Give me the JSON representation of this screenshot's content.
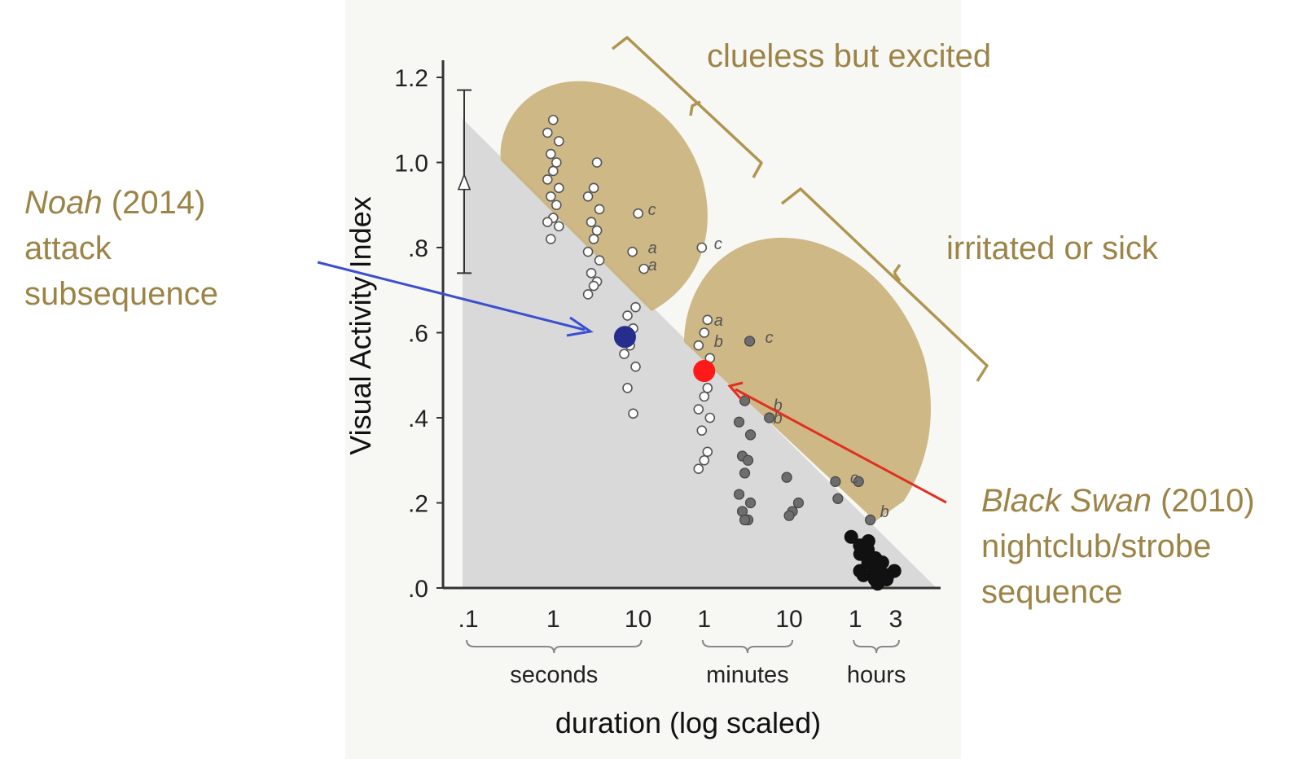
{
  "chart_data": {
    "type": "scatter",
    "ylabel": "Visual Activity Index",
    "xlabel": "duration (log scaled)",
    "x_scale": "log",
    "ylim": [
      0,
      1.2
    ],
    "y_ticks": [
      ".0",
      ".2",
      ".4",
      ".6",
      ".8",
      "1.0",
      "1.2"
    ],
    "x_ticks": [
      ".1",
      "1",
      "10",
      "1",
      "10",
      "1",
      "3"
    ],
    "x_units": [
      "seconds",
      "minutes",
      "hours"
    ],
    "grid": false,
    "reference_marker": {
      "value": 0.95,
      "range_low": 0.74,
      "range_high": 1.17
    },
    "region_labels": [
      "clueless but excited",
      "irritated or sick"
    ],
    "point_letters": [
      "c",
      "a",
      "a",
      "c",
      "a",
      "b",
      "c",
      "b",
      "b",
      "c",
      "b"
    ],
    "series": [
      {
        "style": "white",
        "points": [
          [
            1,
            1.1
          ],
          [
            1,
            1.07
          ],
          [
            1,
            1.05
          ],
          [
            1,
            1.02
          ],
          [
            1,
            1.0
          ],
          [
            1,
            0.98
          ],
          [
            1,
            0.96
          ],
          [
            1,
            0.94
          ],
          [
            1,
            0.92
          ],
          [
            1,
            0.9
          ],
          [
            1,
            0.87
          ],
          [
            1,
            0.86
          ],
          [
            1,
            0.85
          ],
          [
            1,
            0.82
          ],
          [
            3,
            1.0
          ],
          [
            3,
            0.94
          ],
          [
            3,
            0.92
          ],
          [
            3,
            0.89
          ],
          [
            3,
            0.86
          ],
          [
            3,
            0.84
          ],
          [
            3,
            0.82
          ],
          [
            3,
            0.79
          ],
          [
            3,
            0.77
          ],
          [
            3,
            0.74
          ],
          [
            3,
            0.72
          ],
          [
            3,
            0.71
          ],
          [
            3,
            0.69
          ],
          [
            8,
            0.66
          ],
          [
            8,
            0.64
          ],
          [
            8,
            0.61
          ],
          [
            8,
            0.57
          ],
          [
            8,
            0.55
          ],
          [
            8,
            0.52
          ],
          [
            8,
            0.47
          ],
          [
            8,
            0.41
          ],
          [
            10,
            0.88
          ],
          [
            10,
            0.79
          ],
          [
            10,
            0.75
          ],
          [
            60,
            0.8
          ],
          [
            60,
            0.63
          ],
          [
            60,
            0.6
          ],
          [
            60,
            0.57
          ],
          [
            60,
            0.54
          ],
          [
            60,
            0.51
          ],
          [
            60,
            0.47
          ],
          [
            60,
            0.45
          ],
          [
            60,
            0.42
          ],
          [
            60,
            0.4
          ],
          [
            60,
            0.37
          ],
          [
            60,
            0.32
          ],
          [
            60,
            0.3
          ],
          [
            60,
            0.28
          ]
        ]
      },
      {
        "style": "gray",
        "points": [
          [
            180,
            0.44
          ],
          [
            180,
            0.39
          ],
          [
            180,
            0.36
          ],
          [
            180,
            0.31
          ],
          [
            180,
            0.3
          ],
          [
            180,
            0.27
          ],
          [
            180,
            0.22
          ],
          [
            180,
            0.2
          ],
          [
            180,
            0.18
          ],
          [
            180,
            0.16
          ],
          [
            180,
            0.16
          ],
          [
            240,
            0.58
          ],
          [
            300,
            0.4
          ],
          [
            600,
            0.26
          ],
          [
            600,
            0.18
          ],
          [
            600,
            0.17
          ],
          [
            900,
            0.2
          ],
          [
            1800,
            0.25
          ],
          [
            2400,
            0.21
          ],
          [
            3600,
            0.25
          ],
          [
            5400,
            0.16
          ]
        ]
      },
      {
        "style": "black",
        "points": [
          [
            3600,
            0.12
          ],
          [
            3900,
            0.1
          ],
          [
            4300,
            0.08
          ],
          [
            4600,
            0.11
          ],
          [
            5000,
            0.06
          ],
          [
            5400,
            0.09
          ],
          [
            5800,
            0.05
          ],
          [
            6200,
            0.07
          ],
          [
            6600,
            0.04
          ],
          [
            7000,
            0.06
          ],
          [
            7400,
            0.03
          ],
          [
            7800,
            0.05
          ],
          [
            8300,
            0.03
          ],
          [
            8800,
            0.02
          ],
          [
            9300,
            0.04
          ],
          [
            4000,
            0.04
          ],
          [
            4800,
            0.03
          ],
          [
            5600,
            0.02
          ],
          [
            6400,
            0.02
          ],
          [
            7200,
            0.01
          ]
        ]
      },
      {
        "name": "Noah",
        "style": "blue",
        "points": [
          [
            7,
            0.59
          ]
        ]
      },
      {
        "name": "Black Swan",
        "style": "red",
        "points": [
          [
            60,
            0.51
          ]
        ]
      }
    ],
    "callouts": [
      {
        "title": "Noah",
        "year": "(2014)",
        "line2": "attack",
        "line3": "subsequence",
        "color": "#3a4fd0"
      },
      {
        "title": "Black Swan",
        "year": "(2010)",
        "line2": "nightclub/strobe",
        "line3": "sequence",
        "color": "#e0301e"
      }
    ]
  },
  "colors": {
    "gold": "#9c8447",
    "region_fill": "#c9b07a",
    "shaded_fill": "#d9d9d9",
    "noah_point": "#252e8c",
    "swan_point": "#ff1a1a"
  }
}
